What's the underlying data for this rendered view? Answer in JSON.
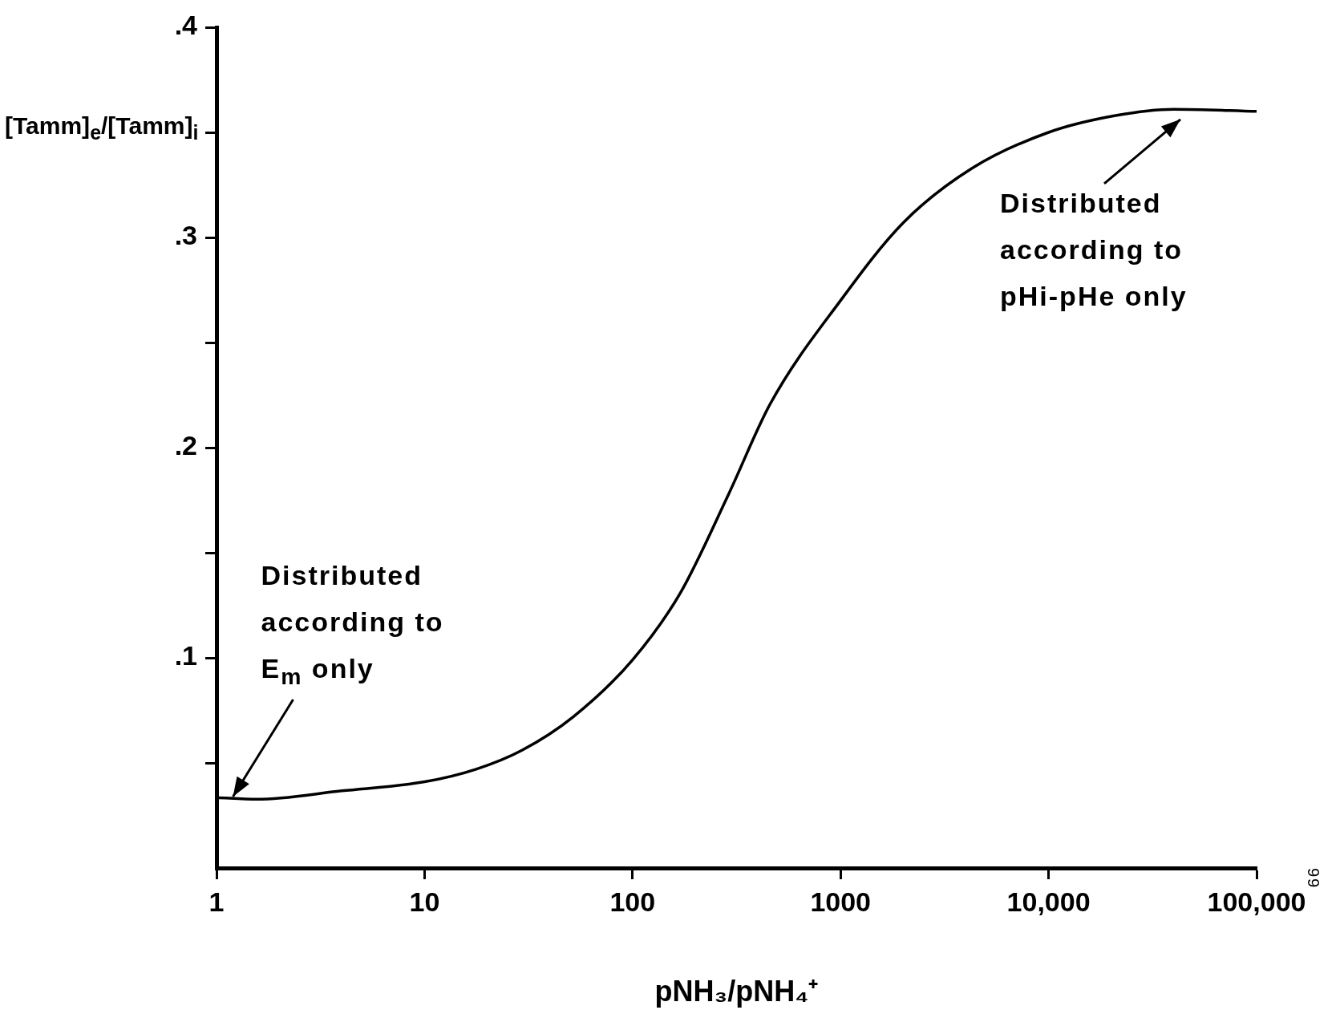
{
  "chart_data": {
    "type": "line",
    "xlabel": "pNH₃/pNH₄⁺",
    "ylabel": "[Tamm]$_{e}$/[Tamm]$_{i}$",
    "log": "x",
    "grid": false,
    "legend": false,
    "marker": "none",
    "line_style": "solid",
    "x": [
      1,
      1.56,
      4,
      10,
      17.7,
      29.4,
      52,
      100,
      170,
      290,
      460,
      1000,
      2000,
      4300,
      10000,
      21000,
      40000,
      100000
    ],
    "series": [
      {
        "color": "#000000",
        "values": [
          0.0335,
          0.0327,
          0.0367,
          0.041,
          0.047,
          0.056,
          0.072,
          0.099,
          0.131,
          0.178,
          0.221,
          0.27,
          0.307,
          0.333,
          0.35,
          0.358,
          0.361,
          0.36
        ]
      }
    ],
    "xlim": [
      1,
      100000
    ],
    "xticks": [
      1,
      10,
      100,
      1000,
      {
        "value": 10000,
        "label": "10,000"
      },
      {
        "value": 100000,
        "label": "100,000"
      }
    ],
    "ylim": [
      0,
      0.4
    ],
    "yticks": [
      {
        "value": 0.05,
        "label": null
      },
      {
        "value": 0.1,
        "label": ".1"
      },
      {
        "value": 0.15,
        "label": null
      },
      {
        "value": 0.2,
        "label": ".2"
      },
      {
        "value": 0.25,
        "label": null
      },
      {
        "value": 0.3,
        "label": ".3"
      },
      {
        "value": 0.35,
        "label": null
      },
      {
        "value": 0.4,
        "label": ".4"
      }
    ],
    "annotations": [
      {
        "text": "Distributed according to E$_{m}$ only",
        "x": 1.2,
        "y": 0.034
      },
      {
        "text": "Distributed according to pHi-pHe only",
        "x": 45000,
        "y": 0.36
      },
      "99"
    ]
  }
}
